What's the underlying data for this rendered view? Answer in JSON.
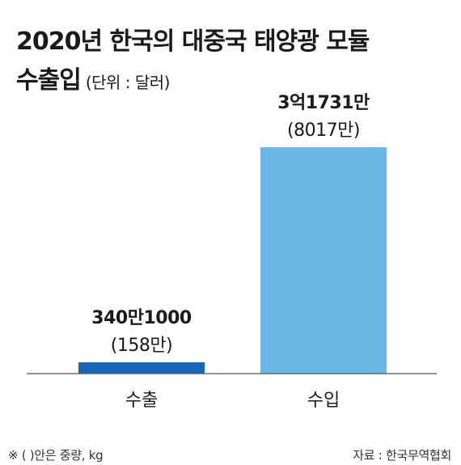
{
  "header": {
    "title_line1": "2020년 한국의 대중국 태양광 모듈",
    "title_line2": "수출입",
    "unit": "(단위 : 달러)"
  },
  "chart_data": {
    "type": "bar",
    "categories": [
      "수출",
      "수입"
    ],
    "values": [
      3401000,
      317310000
    ],
    "value_labels": [
      "340만1000",
      "3억1731만"
    ],
    "sub_labels": [
      "(158만)",
      "(8017만)"
    ],
    "colors": [
      "#1565b8",
      "#6ab8e5"
    ],
    "ylim": [
      0,
      317310000
    ],
    "grid": false,
    "legend": "none"
  },
  "footer": {
    "note": "※ (  )안은 중량, kg",
    "source": "자료 : 한국무역협회"
  }
}
